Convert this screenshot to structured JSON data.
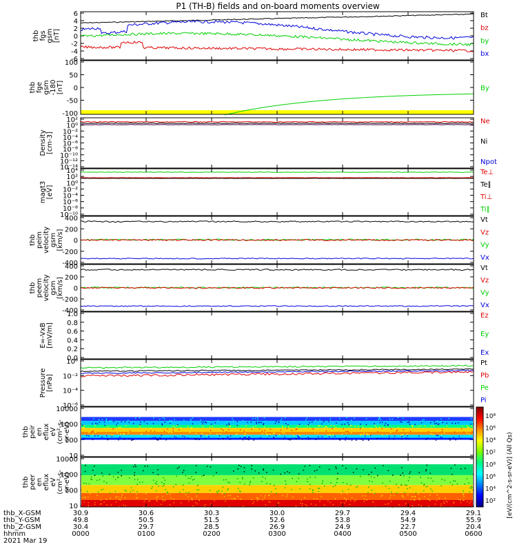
{
  "title": "P1  (TH-B)  fields and on-board moments overview",
  "colors": {
    "black": "#000000",
    "red": "#e00000",
    "green": "#00d000",
    "blue": "#0000dd"
  },
  "panels": [
    {
      "id": "fgs",
      "ylabel": [
        "thb",
        "fgs",
        "gsm",
        "[nT]"
      ],
      "yticks": [
        "6",
        "4",
        "2",
        "0",
        "-2",
        "-4",
        "-6"
      ],
      "legend": [
        {
          "text": "Bt",
          "color": "black"
        },
        {
          "text": "bz",
          "color": "red"
        },
        {
          "text": "by",
          "color": "green"
        },
        {
          "text": "bx",
          "color": "blue"
        }
      ]
    },
    {
      "id": "fge",
      "ylabel": [
        "thb",
        "fge",
        "gsm",
        "-180",
        "[nT]"
      ],
      "yticks": [
        "100",
        "50",
        "0",
        "-50",
        "-100"
      ],
      "legend": [
        {
          "text": "By",
          "color": "green"
        }
      ]
    },
    {
      "id": "density",
      "ylabel": [
        "Density",
        "[cm-3]"
      ],
      "yticks": [
        "10²",
        "10⁰",
        "10⁻²",
        "10⁻⁴",
        "10⁻⁶",
        "10⁻⁸",
        "10⁻¹⁰",
        "10⁻¹²",
        "10⁻¹⁴"
      ],
      "legend": [
        {
          "text": "Ne",
          "color": "red"
        },
        {
          "text": "Ni",
          "color": "black"
        },
        {
          "text": "Npot",
          "color": "blue"
        }
      ]
    },
    {
      "id": "temp",
      "ylabel": [
        "magt3",
        "[eV]"
      ],
      "yticks": [
        "10⁴",
        "10²",
        "10⁰",
        "10⁻²",
        "10⁻⁴",
        "10⁻⁶",
        "10⁻⁸",
        "10⁻¹⁰"
      ],
      "legend": [
        {
          "text": "Te⊥",
          "color": "red"
        },
        {
          "text": "Te∥",
          "color": "black"
        },
        {
          "text": "Ti⊥",
          "color": "red"
        },
        {
          "text": "Ti∥",
          "color": "green"
        }
      ]
    },
    {
      "id": "ivel",
      "ylabel": [
        "thb",
        "peim",
        "velocity",
        "gsm",
        "[km/s]"
      ],
      "yticks": [
        "400",
        "200",
        "0",
        "-200",
        "-400"
      ],
      "legend": [
        {
          "text": "Vt",
          "color": "black"
        },
        {
          "text": "Vz",
          "color": "red"
        },
        {
          "text": "Vy",
          "color": "green"
        },
        {
          "text": "Vx",
          "color": "blue"
        }
      ]
    },
    {
      "id": "evel",
      "ylabel": [
        "thb",
        "peem",
        "velocity",
        "gsm",
        "[km/s]"
      ],
      "yticks": [
        "400",
        "200",
        "0",
        "-200",
        "-400"
      ],
      "legend": [
        {
          "text": "Vt",
          "color": "black"
        },
        {
          "text": "Vz",
          "color": "red"
        },
        {
          "text": "Vy",
          "color": "green"
        },
        {
          "text": "Vx",
          "color": "blue"
        }
      ]
    },
    {
      "id": "efield",
      "ylabel": [
        "E=-VxB",
        "[mV/m]"
      ],
      "yticks": [
        "1.0",
        "0.8",
        "0.6",
        "0.4",
        "0.2",
        "0.0"
      ],
      "legend": [
        {
          "text": "Ez",
          "color": "red"
        },
        {
          "text": "Ey",
          "color": "green"
        },
        {
          "text": "Ex",
          "color": "blue"
        }
      ]
    },
    {
      "id": "pressure",
      "ylabel": [
        "Pressure",
        "[nPa]"
      ],
      "yticks": [
        "10⁰",
        "10⁻²",
        "10⁻⁴",
        "10⁻⁶"
      ],
      "legend": [
        {
          "text": "Pt",
          "color": "black"
        },
        {
          "text": "Pb",
          "color": "red"
        },
        {
          "text": "Pe",
          "color": "green"
        },
        {
          "text": "Pi",
          "color": "blue"
        }
      ]
    },
    {
      "id": "ispec",
      "ylabel": [
        "thb",
        "peir",
        "en",
        "eflux",
        "eV",
        "(cm²-s-",
        "sr-eV)"
      ],
      "yticks": [
        "10000",
        "1000",
        "100",
        "10"
      ],
      "legend": []
    },
    {
      "id": "espec",
      "ylabel": [
        "thb",
        "peer",
        "en",
        "eflux",
        "eV",
        "(cm²-s-",
        "sr-eV)"
      ],
      "yticks": [
        "10000",
        "1000",
        "100",
        "10"
      ],
      "legend": []
    }
  ],
  "colorbar": {
    "ticks": [
      "10⁸",
      "10⁶",
      "10⁴",
      "10²",
      "10⁸",
      "10⁶",
      "10⁴",
      "10²"
    ],
    "label": "[eV/(cm^2-s-sr-eV)] (All Qs)"
  },
  "xaxis": {
    "rows": [
      {
        "label": "thb_X-GSM",
        "values": [
          "30.9",
          "30.6",
          "30.3",
          "30.0",
          "29.7",
          "29.4",
          "29.1"
        ]
      },
      {
        "label": "thb_Y-GSM",
        "values": [
          "49.8",
          "50.5",
          "51.5",
          "52.6",
          "53.8",
          "54.9",
          "55.9"
        ]
      },
      {
        "label": "thb_Z-GSM",
        "values": [
          "30.4",
          "29.7",
          "28.5",
          "26.9",
          "24.9",
          "22.7",
          "20.4"
        ]
      },
      {
        "label": "hhmm",
        "values": [
          "0000",
          "0100",
          "0200",
          "0300",
          "0400",
          "0500",
          "0600"
        ]
      }
    ],
    "date": "2021 Mar 19"
  },
  "chart_data": {
    "type": "line",
    "title": "P1  (TH-B)  fields and on-board moments overview",
    "x": [
      "0000",
      "0100",
      "0200",
      "0300",
      "0400",
      "0500",
      "0600"
    ],
    "series": [
      {
        "name": "Bt",
        "values": [
          3.2,
          3.8,
          3.9,
          4.3,
          4.6,
          5.0,
          5.4
        ]
      },
      {
        "name": "bz",
        "values": [
          -3.0,
          -1.6,
          -2.6,
          -2.7,
          -3.0,
          -3.6,
          -3.9
        ]
      },
      {
        "name": "by",
        "values": [
          -0.7,
          0.4,
          0.8,
          0.9,
          1.5,
          -0.2,
          -0.4
        ]
      },
      {
        "name": "bx",
        "values": [
          1.2,
          3.0,
          2.9,
          2.5,
          1.2,
          2.5,
          3.9
        ]
      },
      {
        "name": "By",
        "values": [
          null,
          null,
          null,
          -100,
          -60,
          -35,
          -18
        ]
      },
      {
        "name": "Ni",
        "values": [
          1,
          1,
          1,
          1,
          1,
          1,
          1
        ]
      },
      {
        "name": "Vt",
        "values": [
          320,
          320,
          320,
          320,
          320,
          320,
          320
        ]
      },
      {
        "name": "Vx",
        "values": [
          -330,
          -330,
          -330,
          -330,
          -330,
          -330,
          -330
        ]
      }
    ],
    "xlim": [
      "0000",
      "0600"
    ]
  }
}
